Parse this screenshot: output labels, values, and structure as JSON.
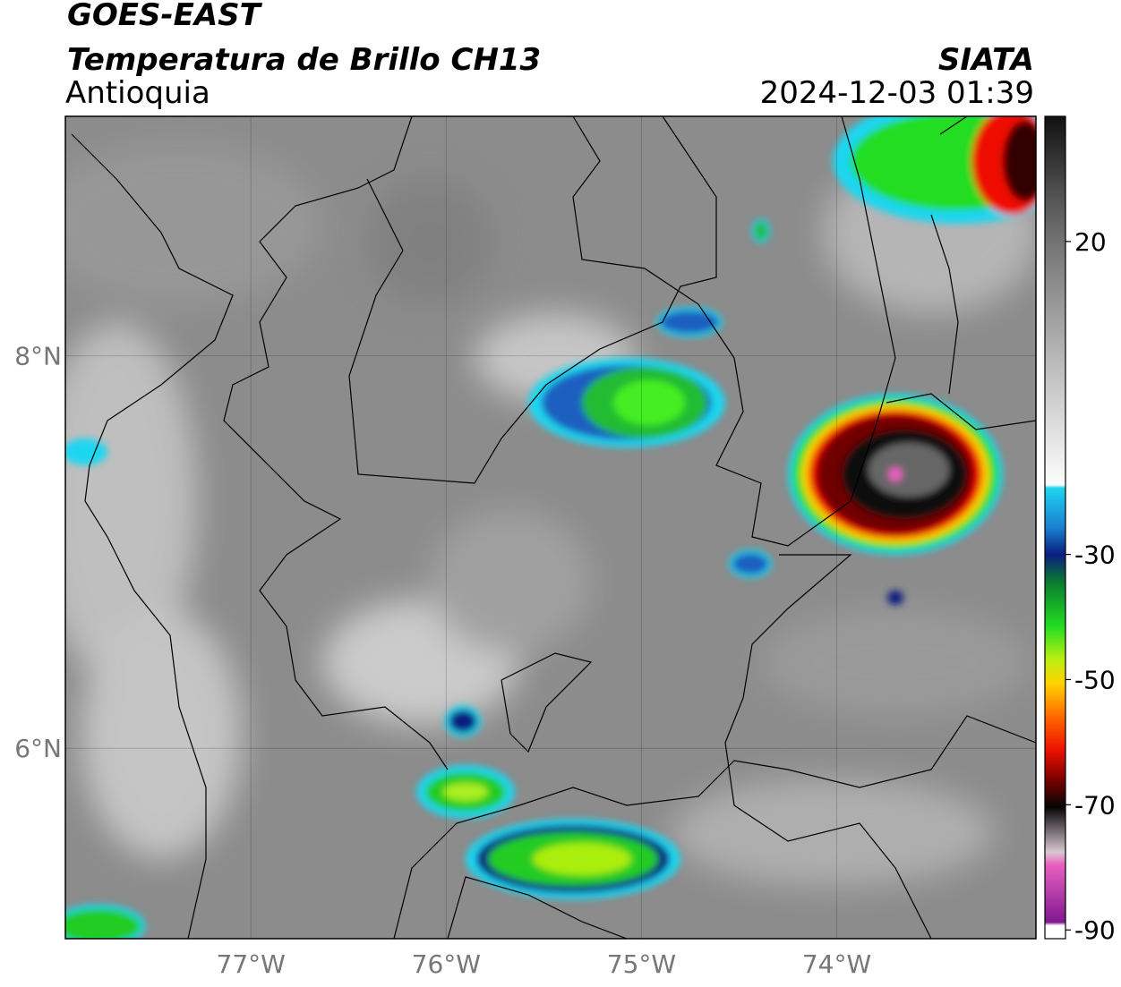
{
  "header": {
    "satellite": "GOES-EAST",
    "product": "Temperatura de Brillo CH13",
    "region": "Antioquia",
    "source": "SIATA",
    "datetime": "2024-12-03 01:39"
  },
  "map": {
    "lon_range": [
      -77.95,
      -72.98
    ],
    "lat_range": [
      5.03,
      9.22
    ],
    "lon_ticks": [
      {
        "value": -77,
        "label": "77°W"
      },
      {
        "value": -76,
        "label": "76°W"
      },
      {
        "value": -75,
        "label": "75°W"
      },
      {
        "value": -74,
        "label": "74°W"
      }
    ],
    "lat_ticks": [
      {
        "value": 8,
        "label": "8°N"
      },
      {
        "value": 6,
        "label": "6°N"
      }
    ],
    "grid": true
  },
  "colorbar": {
    "range": [
      -91.4,
      40
    ],
    "ticks": [
      20,
      -30,
      -50,
      -70,
      -90
    ]
  }
}
